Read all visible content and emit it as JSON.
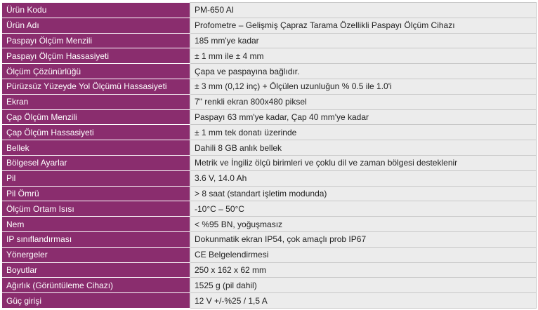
{
  "table": {
    "rows": [
      [
        "Ürün Kodu",
        "PM-650 AI"
      ],
      [
        "Ürün Adı",
        "Profometre – Gelişmiş Çapraz Tarama Özellikli Paspayı Ölçüm Cihazı"
      ],
      [
        "Paspayı Ölçüm Menzili",
        "185 mm'ye kadar"
      ],
      [
        "Paspayı Ölçüm Hassasiyeti",
        "± 1 mm ile ± 4 mm"
      ],
      [
        "Ölçüm Çözünürlüğü",
        "Çapa ve paspayına bağlıdır."
      ],
      [
        "Pürüzsüz Yüzeyde Yol Ölçümü Hassasiyeti",
        "± 3 mm (0,12 inç) + Ölçülen uzunluğun % 0.5 ile 1.0'i"
      ],
      [
        "Ekran",
        "7\" renkli ekran 800x480 piksel"
      ],
      [
        "Çap Ölçüm Menzili",
        "Paspayı 63 mm'ye kadar, Çap 40 mm'ye kadar"
      ],
      [
        "Çap Ölçüm Hassasiyeti",
        "± 1 mm tek donatı üzerinde"
      ],
      [
        "Bellek",
        "Dahili 8 GB anlık bellek"
      ],
      [
        "Bölgesel Ayarlar",
        "Metrik ve İngiliz ölçü birimleri ve çoklu dil ve zaman bölgesi desteklenir"
      ],
      [
        "Pil",
        "3.6 V, 14.0 Ah"
      ],
      [
        "Pil Ömrü",
        "> 8 saat (standart işletim modunda)"
      ],
      [
        "Ölçüm Ortam Isısı",
        "-10°C – 50°C"
      ],
      [
        "Nem",
        "< %95 BN, yoğuşmasız"
      ],
      [
        "IP sınıflandırması",
        "Dokunmatik ekran IP54, çok amaçlı prob IP67"
      ],
      [
        "Yönergeler",
        "CE Belgelendirmesi"
      ],
      [
        "Boyutlar",
        "250 x 162 x 62 mm"
      ],
      [
        "Ağırlık (Görüntüleme Cihazı)",
        "1525 g (pil dahil)"
      ],
      [
        "Güç girişi",
        "12 V +/-%25 / 1,5 A"
      ]
    ]
  }
}
